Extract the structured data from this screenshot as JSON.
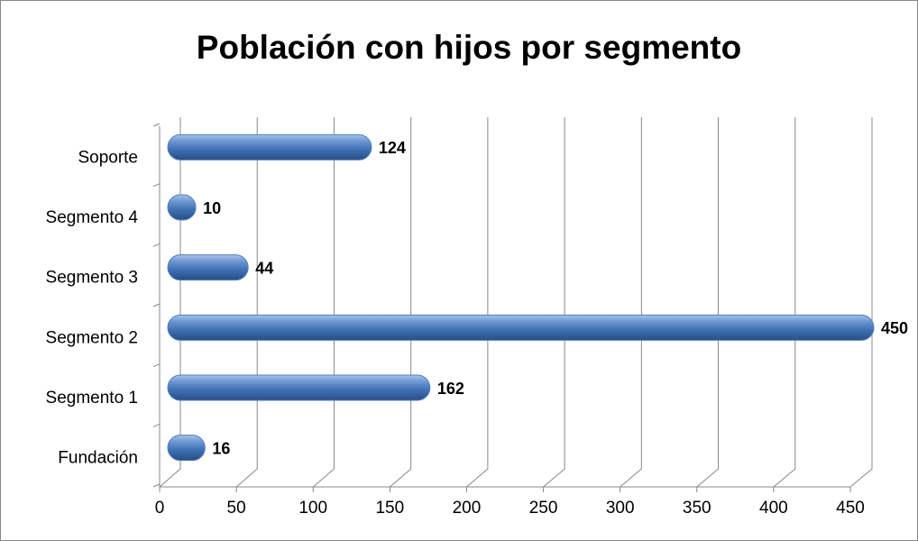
{
  "chart_data": {
    "type": "hbar",
    "title": "Población con hijos por segmento",
    "categories": [
      "Fundación",
      "Segmento 1",
      "Segmento 2",
      "Segmento 3",
      "Segmento 4",
      "Soporte"
    ],
    "values": [
      16,
      162,
      450,
      44,
      10,
      124
    ],
    "color": "#4f81bd",
    "xlim": [
      0,
      450
    ],
    "xticks": [
      0,
      50,
      100,
      150,
      200,
      250,
      300,
      350,
      400,
      450
    ],
    "grid": true
  }
}
